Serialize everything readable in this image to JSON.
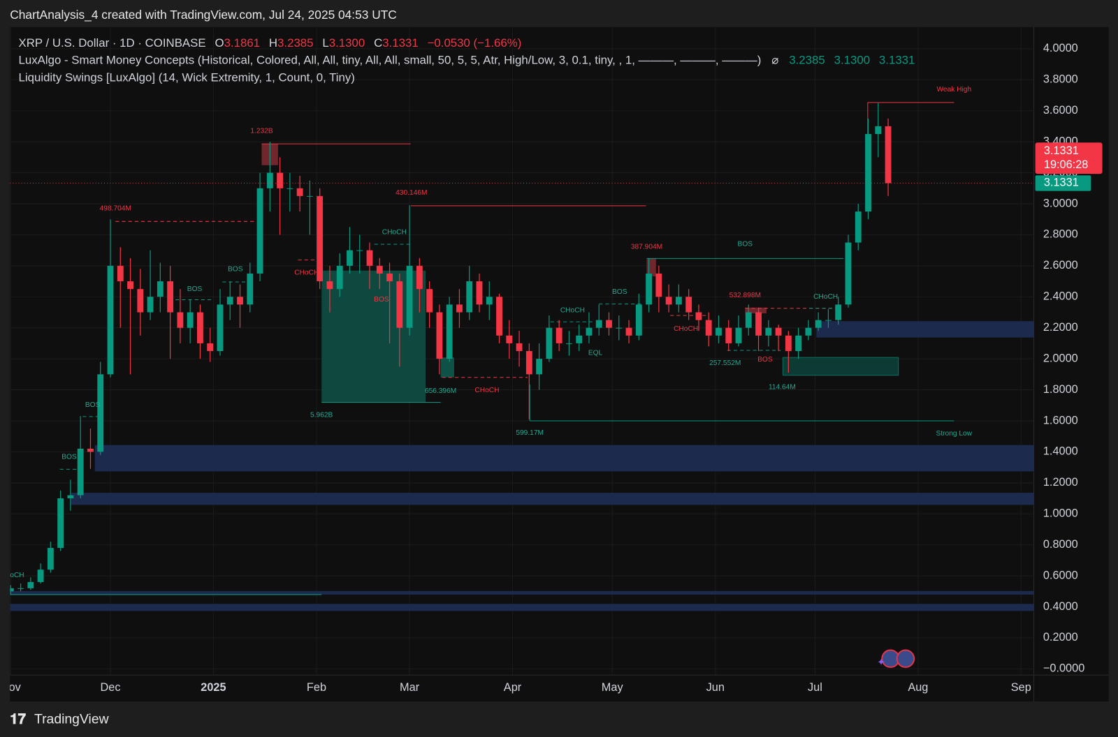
{
  "header": {
    "attribution": "ChartAnalysis_4 created with TradingView.com, Jul 24, 2025 04:53 UTC",
    "symbol": "XRP / U.S. Dollar · 1D · COINBASE",
    "ohlc": [
      {
        "label": "O",
        "value": "3.1861"
      },
      {
        "label": "H",
        "value": "3.2385"
      },
      {
        "label": "L",
        "value": "3.1300"
      },
      {
        "label": "C",
        "value": "3.1331"
      }
    ],
    "change": "−0.0530 (−1.66%)"
  },
  "indicators": [
    {
      "text": "LuxAlgo - Smart Money Concepts (Historical, Colored, All, All, tiny, All, All, small, 50, 5, 5, Atr, High/Low, 3, 0.1, tiny, , 1, ———, ———, ———)",
      "symbol": "⌀",
      "values": [
        "3.2385",
        "3.1300",
        "3.1331"
      ]
    },
    {
      "text": "Liquidity Swings [LuxAlgo] (14, Wick Extremity, 1, Count, 0, Tiny)"
    }
  ],
  "chart_data": {
    "type": "candlestick",
    "open": [
      0.5,
      0.52,
      0.52,
      0.56,
      0.64,
      0.78,
      1.1,
      1.12,
      1.42,
      1.4,
      1.9,
      2.6,
      2.5,
      2.45,
      2.3,
      2.4,
      2.5,
      2.3,
      2.2,
      2.3,
      2.1,
      2.05,
      2.35,
      2.4,
      2.35,
      2.55,
      3.1,
      3.2,
      3.1,
      3.1,
      3.05,
      3.05,
      2.5,
      2.45,
      2.6,
      2.7,
      2.7,
      2.6,
      2.55,
      2.5,
      2.2,
      2.6,
      2.45,
      2.3,
      2.0,
      2.35,
      2.3,
      2.5,
      2.35,
      2.4,
      2.15,
      2.1,
      2.05,
      1.9,
      2.0,
      2.2,
      2.1,
      2.1,
      2.15,
      2.2,
      2.25,
      2.2,
      2.2,
      2.15,
      2.35,
      2.55,
      2.4,
      2.35,
      2.4,
      2.3,
      2.25,
      2.15,
      2.2,
      2.1,
      2.2,
      2.3,
      2.15,
      2.2,
      2.15,
      2.05,
      2.15,
      2.2,
      2.25,
      2.25,
      2.35,
      2.75,
      2.95,
      3.45,
      3.5
    ],
    "high": [
      0.54,
      0.55,
      0.59,
      0.68,
      0.82,
      1.15,
      1.22,
      1.63,
      1.55,
      1.98,
      2.9,
      2.72,
      2.65,
      2.58,
      2.7,
      2.62,
      2.6,
      2.45,
      2.38,
      2.35,
      2.2,
      2.45,
      2.5,
      2.48,
      2.62,
      3.2,
      3.4,
      3.3,
      3.2,
      3.18,
      3.15,
      3.1,
      2.6,
      2.68,
      2.85,
      2.8,
      2.75,
      2.65,
      2.62,
      2.55,
      2.99,
      2.65,
      2.5,
      2.35,
      2.4,
      2.45,
      2.6,
      2.55,
      2.5,
      2.42,
      2.25,
      2.18,
      2.1,
      2.1,
      2.28,
      2.25,
      2.18,
      2.22,
      2.3,
      2.35,
      2.3,
      2.28,
      2.25,
      2.42,
      2.65,
      2.6,
      2.48,
      2.48,
      2.45,
      2.35,
      2.3,
      2.28,
      2.25,
      2.28,
      2.35,
      2.33,
      2.25,
      2.22,
      2.18,
      2.2,
      2.25,
      2.3,
      2.32,
      2.4,
      2.8,
      3.0,
      3.55,
      3.65,
      3.55
    ],
    "low": [
      0.48,
      0.5,
      0.51,
      0.55,
      0.62,
      0.76,
      1.02,
      1.1,
      1.29,
      1.38,
      1.88,
      2.2,
      1.9,
      2.15,
      2.25,
      2.3,
      2.0,
      2.1,
      2.1,
      2.0,
      1.98,
      2.02,
      2.25,
      2.2,
      2.3,
      2.5,
      2.95,
      2.8,
      2.95,
      2.95,
      2.8,
      2.45,
      2.3,
      2.4,
      2.55,
      2.55,
      2.45,
      2.45,
      2.1,
      1.95,
      2.15,
      2.3,
      2.2,
      1.9,
      1.98,
      2.2,
      2.25,
      2.3,
      2.25,
      2.1,
      2.0,
      1.95,
      1.61,
      1.8,
      1.98,
      2.05,
      2.02,
      2.05,
      2.1,
      2.15,
      2.15,
      2.12,
      2.1,
      2.12,
      2.3,
      2.3,
      2.3,
      2.3,
      2.25,
      2.18,
      2.08,
      2.1,
      2.05,
      2.08,
      2.15,
      2.05,
      2.08,
      2.05,
      1.91,
      2.0,
      2.12,
      2.18,
      2.2,
      2.22,
      2.33,
      2.7,
      2.9,
      3.3,
      3.05
    ],
    "close": [
      0.52,
      0.52,
      0.56,
      0.64,
      0.78,
      1.1,
      1.12,
      1.42,
      1.4,
      1.9,
      2.6,
      2.5,
      2.45,
      2.3,
      2.4,
      2.5,
      2.3,
      2.2,
      2.3,
      2.1,
      2.05,
      2.35,
      2.4,
      2.35,
      2.55,
      3.1,
      3.2,
      3.1,
      3.1,
      3.05,
      3.05,
      2.5,
      2.45,
      2.6,
      2.7,
      2.7,
      2.6,
      2.55,
      2.5,
      2.2,
      2.6,
      2.45,
      2.3,
      2.0,
      2.35,
      2.3,
      2.5,
      2.35,
      2.4,
      2.15,
      2.1,
      2.05,
      1.9,
      2.0,
      2.2,
      2.1,
      2.1,
      2.15,
      2.2,
      2.25,
      2.2,
      2.2,
      2.15,
      2.35,
      2.55,
      2.4,
      2.35,
      2.4,
      2.3,
      2.25,
      2.15,
      2.2,
      2.1,
      2.2,
      2.3,
      2.15,
      2.2,
      2.15,
      2.05,
      2.15,
      2.2,
      2.25,
      2.25,
      2.35,
      2.75,
      2.95,
      3.45,
      3.5,
      3.1331
    ],
    "up_color": "#089981",
    "down_color": "#f23645",
    "xlim": [
      0,
      102.4
    ],
    "xticks": [
      {
        "value": 0,
        "label": "Nov"
      },
      {
        "value": 10,
        "label": "Dec"
      },
      {
        "value": 20.33,
        "label": "2025"
      },
      {
        "value": 30.67,
        "label": "Feb"
      },
      {
        "value": 40,
        "label": "Mar"
      },
      {
        "value": 50.33,
        "label": "Apr"
      },
      {
        "value": 60.33,
        "label": "May"
      },
      {
        "value": 70.67,
        "label": "Jun"
      },
      {
        "value": 80.67,
        "label": "Jul"
      },
      {
        "value": 91,
        "label": "Aug"
      },
      {
        "value": 101.33,
        "label": "Sep"
      }
    ],
    "ylim": [
      -0.04,
      4.14
    ],
    "yticks": [
      {
        "value": 0,
        "label": "−0.0000"
      },
      {
        "value": 0.2,
        "label": "0.2000"
      },
      {
        "value": 0.4,
        "label": "0.4000"
      },
      {
        "value": 0.6,
        "label": "0.6000"
      },
      {
        "value": 0.8,
        "label": "0.8000"
      },
      {
        "value": 1,
        "label": "1.0000"
      },
      {
        "value": 1.2,
        "label": "1.2000"
      },
      {
        "value": 1.4,
        "label": "1.4000"
      },
      {
        "value": 1.6,
        "label": "1.6000"
      },
      {
        "value": 1.8,
        "label": "1.8000"
      },
      {
        "value": 2,
        "label": "2.0000"
      },
      {
        "value": 2.2,
        "label": "2.2000"
      },
      {
        "value": 2.4,
        "label": "2.4000"
      },
      {
        "value": 2.6,
        "label": "2.6000"
      },
      {
        "value": 2.8,
        "label": "2.8000"
      },
      {
        "value": 3,
        "label": "3.0000"
      },
      {
        "value": 3.2,
        "label": "3.2000"
      },
      {
        "value": 3.4,
        "label": "3.4000"
      },
      {
        "value": 3.6,
        "label": "3.6000"
      },
      {
        "value": 3.8,
        "label": "3.8000"
      },
      {
        "value": 4,
        "label": "4.0000"
      }
    ],
    "grid": true,
    "current_price": {
      "value": 3.1331,
      "label": "3.1331",
      "countdown": "19:06:28"
    },
    "annotations": [
      "1.232B",
      "498.704M",
      "430.146M",
      "387.904M",
      "532.898M",
      "Weak High",
      "5.962B",
      "656.396M",
      "599.17M",
      "257.552M",
      "114.64M",
      "Strong Low",
      "BOS",
      "BOS",
      "BOS",
      "BOS",
      "BOS",
      "BOS",
      "BOS",
      "BOS",
      "CHoCH",
      "CHoCH",
      "CHoCH",
      "oCH",
      "CHoCH",
      "CHoCH",
      "CHoCH",
      "EQL"
    ]
  },
  "footer": {
    "brand": "TradingView"
  }
}
